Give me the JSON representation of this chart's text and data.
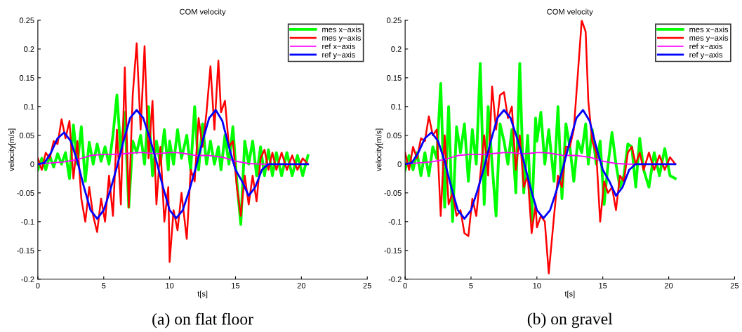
{
  "chart_data": [
    {
      "type": "line",
      "title": "COM velocity",
      "xlabel": "t[s]",
      "ylabel": "velocity[m/s]",
      "annotations": [
        "(a) on flat floor"
      ],
      "xlim": [
        0,
        25
      ],
      "xticks": [
        0,
        5,
        10,
        15,
        20,
        25
      ],
      "ylim": [
        -0.2,
        0.25
      ],
      "yticks": [
        -0.2,
        -0.15,
        -0.1,
        -0.05,
        0,
        0.05,
        0.1,
        0.15,
        0.2,
        0.25
      ],
      "grid": false,
      "legend": "top right",
      "x": [
        0,
        0.3,
        0.6,
        0.9,
        1.2,
        1.5,
        1.8,
        2.1,
        2.4,
        2.7,
        3.0,
        3.3,
        3.6,
        3.9,
        4.2,
        4.5,
        4.8,
        5.1,
        5.4,
        5.7,
        6.0,
        6.3,
        6.6,
        6.9,
        7.2,
        7.5,
        7.8,
        8.1,
        8.4,
        8.7,
        9.0,
        9.3,
        9.6,
        9.9,
        10.0,
        10.3,
        10.6,
        10.9,
        11.3,
        11.6,
        11.9,
        12.2,
        12.5,
        12.8,
        13.1,
        13.4,
        13.7,
        13.9,
        14.2,
        14.5,
        14.8,
        15.1,
        15.4,
        15.7,
        16.0,
        16.3,
        16.6,
        16.9,
        17.2,
        17.5,
        17.8,
        18.1,
        18.5,
        18.9,
        19.3,
        19.7,
        20.1,
        20.5
      ],
      "series": [
        {
          "name": "mes x−axis",
          "color": "#00ff00",
          "values": [
            -0.01,
            0.01,
            -0.01,
            0.015,
            -0.005,
            0.018,
            0.0,
            0.02,
            -0.025,
            0.068,
            0.0,
            0.065,
            -0.03,
            0.038,
            0.0,
            0.035,
            0.005,
            0.03,
            0.0,
            0.05,
            0.12,
            0.02,
            0.09,
            -0.075,
            0.04,
            0.02,
            0.05,
            0.0,
            0.1,
            -0.02,
            0.04,
            0.0,
            0.06,
            -0.01,
            0.04,
            0.0,
            0.06,
            0.01,
            0.05,
            -0.01,
            0.1,
            -0.01,
            0.07,
            0.0,
            0.04,
            0.0,
            0.03,
            -0.01,
            0.05,
            0.0,
            0.065,
            -0.03,
            -0.105,
            0.04,
            0.0,
            0.04,
            -0.02,
            0.03,
            -0.02,
            0.025,
            -0.02,
            0.02,
            -0.02,
            0.02,
            -0.02,
            0.015,
            -0.02,
            0.015
          ]
        },
        {
          "name": "mes y−axis",
          "color": "#ff0000",
          "values": [
            0.01,
            -0.01,
            0.02,
            0.01,
            0.04,
            0.035,
            0.078,
            0.045,
            0.075,
            -0.025,
            0.04,
            -0.06,
            -0.1,
            -0.04,
            -0.09,
            -0.118,
            -0.06,
            -0.1,
            -0.02,
            -0.09,
            0.06,
            -0.07,
            0.168,
            -0.075,
            0.12,
            0.21,
            0.06,
            0.205,
            0.01,
            0.11,
            -0.07,
            0.03,
            -0.1,
            -0.04,
            -0.17,
            -0.08,
            -0.115,
            -0.05,
            -0.13,
            -0.01,
            -0.03,
            0.08,
            0.03,
            0.09,
            0.17,
            0.06,
            0.18,
            0.09,
            0.11,
            0.03,
            0.04,
            -0.04,
            -0.09,
            -0.02,
            -0.07,
            -0.02,
            -0.065,
            0.01,
            0.025,
            -0.01,
            0.02,
            -0.01,
            0.02,
            -0.01,
            0.015,
            -0.01,
            0.01,
            0
          ]
        },
        {
          "name": "ref x−axis",
          "color": "#ff00ff",
          "x": [
            0,
            1,
            2,
            3,
            4,
            5,
            6,
            7,
            7.5,
            8,
            9,
            10,
            10.5,
            11,
            12,
            13,
            14,
            15,
            16,
            17,
            20.5
          ],
          "values": [
            0,
            0.002,
            0.004,
            0.008,
            0.015,
            0.017,
            0.017,
            0.019,
            0.02,
            0.02,
            0.018,
            0.02,
            0.02,
            0.019,
            0.015,
            0.015,
            0.012,
            0.005,
            0.001,
            0,
            0
          ]
        },
        {
          "name": "ref y−axis",
          "color": "#0000ff",
          "x": [
            0,
            0.5,
            1,
            1.5,
            2,
            2.5,
            3,
            3.5,
            4,
            4.5,
            5,
            5.5,
            6,
            6.5,
            7,
            7.5,
            8,
            8.5,
            9,
            9.5,
            10,
            10.5,
            11,
            11.5,
            12,
            12.5,
            13,
            13.5,
            14,
            14.5,
            15,
            15.5,
            16,
            16.5,
            17,
            17.5,
            18,
            20.5
          ],
          "values": [
            0,
            0.002,
            0.02,
            0.045,
            0.055,
            0.04,
            0.005,
            -0.04,
            -0.08,
            -0.095,
            -0.08,
            -0.045,
            -0.005,
            0.04,
            0.08,
            0.094,
            0.08,
            0.045,
            0.005,
            -0.04,
            -0.08,
            -0.094,
            -0.08,
            -0.045,
            -0.005,
            0.04,
            0.08,
            0.094,
            0.075,
            0.03,
            -0.01,
            -0.03,
            -0.055,
            -0.04,
            -0.01,
            0,
            0,
            0
          ]
        }
      ]
    },
    {
      "type": "line",
      "title": "COM velocity",
      "xlabel": "t[s]",
      "ylabel": "velocity[m/s]",
      "annotations": [
        "(b) on gravel"
      ],
      "xlim": [
        0,
        25
      ],
      "xticks": [
        0,
        5,
        10,
        15,
        20,
        25
      ],
      "ylim": [
        -0.2,
        0.25
      ],
      "yticks": [
        -0.2,
        -0.15,
        -0.1,
        -0.05,
        0,
        0.05,
        0.1,
        0.15,
        0.2,
        0.25
      ],
      "grid": false,
      "legend": "top right",
      "x": [
        0,
        0.3,
        0.6,
        0.9,
        1.2,
        1.5,
        1.8,
        2.1,
        2.4,
        2.7,
        3.0,
        3.3,
        3.6,
        3.9,
        4.2,
        4.5,
        4.8,
        5.1,
        5.4,
        5.7,
        6.0,
        6.3,
        6.6,
        6.9,
        7.2,
        7.5,
        7.8,
        8.1,
        8.4,
        8.7,
        9.0,
        9.3,
        9.6,
        9.9,
        10.0,
        10.3,
        10.6,
        10.9,
        11.3,
        11.6,
        11.9,
        12.2,
        12.5,
        12.8,
        13.1,
        13.4,
        13.7,
        13.9,
        14.2,
        14.5,
        14.8,
        15.1,
        15.4,
        15.7,
        16.0,
        16.3,
        16.6,
        16.9,
        17.2,
        17.5,
        17.8,
        18.1,
        18.5,
        18.9,
        19.3,
        19.7,
        20.1,
        20.5
      ],
      "series": [
        {
          "name": "mes x−axis",
          "color": "#00ff00",
          "values": [
            -0.01,
            0.015,
            -0.01,
            0.02,
            -0.02,
            0.02,
            -0.02,
            0.03,
            0.01,
            0.14,
            -0.075,
            0.1,
            -0.1,
            0.065,
            0.02,
            0.07,
            -0.03,
            0.06,
            0.0,
            0.175,
            -0.07,
            0.1,
            0.0,
            -0.09,
            0.07,
            0.04,
            0.0,
            0.06,
            -0.05,
            0.175,
            -0.05,
            0.05,
            -0.1,
            0.08,
            0.04,
            0.09,
            0.0,
            0.06,
            -0.03,
            0.1,
            -0.06,
            0.07,
            0.03,
            -0.03,
            0.04,
            0.02,
            0.07,
            0.0,
            0.06,
            0.0,
            0.04,
            -0.07,
            0.0,
            0.055,
            0.0,
            -0.04,
            -0.02,
            0.035,
            0.03,
            -0.04,
            0.045,
            -0.01,
            -0.04,
            0.02,
            -0.02,
            0.027,
            -0.02,
            -0.025
          ]
        },
        {
          "name": "mes y−axis",
          "color": "#ff0000",
          "values": [
            0.02,
            -0.01,
            0.03,
            0.01,
            0.045,
            0.04,
            0.083,
            0.05,
            0.06,
            -0.09,
            0.05,
            -0.07,
            -0.05,
            -0.09,
            -0.08,
            -0.12,
            -0.125,
            -0.06,
            -0.09,
            -0.02,
            0.05,
            -0.02,
            0.135,
            0.06,
            0.12,
            0.125,
            0.08,
            0.1,
            -0.01,
            0.05,
            -0.04,
            -0.02,
            -0.12,
            -0.07,
            -0.11,
            -0.09,
            -0.1,
            -0.19,
            -0.09,
            -0.02,
            -0.04,
            0.03,
            0.03,
            0.06,
            0.155,
            0.25,
            0.23,
            0.11,
            0.04,
            0.02,
            -0.1,
            -0.03,
            -0.05,
            -0.04,
            -0.08,
            -0.02,
            -0.03,
            0.02,
            0.03,
            0.0,
            0.02,
            -0.01,
            0.02,
            -0.01,
            0.015,
            -0.01,
            0.012,
            0.0
          ]
        },
        {
          "name": "ref x−axis",
          "color": "#ff00ff",
          "x": [
            0,
            1,
            2,
            3,
            4,
            5,
            6,
            7,
            7.5,
            8,
            9,
            10,
            10.5,
            11,
            12,
            13,
            14,
            15,
            16,
            17,
            20.5
          ],
          "values": [
            0,
            0.002,
            0.004,
            0.008,
            0.015,
            0.017,
            0.017,
            0.019,
            0.02,
            0.02,
            0.018,
            0.02,
            0.02,
            0.019,
            0.015,
            0.015,
            0.012,
            0.005,
            0.001,
            0,
            0
          ]
        },
        {
          "name": "ref y−axis",
          "color": "#0000ff",
          "x": [
            0,
            0.5,
            1,
            1.5,
            2,
            2.5,
            3,
            3.5,
            4,
            4.5,
            5,
            5.5,
            6,
            6.5,
            7,
            7.5,
            8,
            8.5,
            9,
            9.5,
            10,
            10.5,
            11,
            11.5,
            12,
            12.5,
            13,
            13.5,
            14,
            14.5,
            15,
            15.5,
            16,
            16.5,
            17,
            17.5,
            18,
            20.5
          ],
          "values": [
            0,
            0.002,
            0.02,
            0.045,
            0.055,
            0.04,
            0.005,
            -0.04,
            -0.08,
            -0.095,
            -0.08,
            -0.045,
            -0.005,
            0.04,
            0.08,
            0.094,
            0.08,
            0.045,
            0.005,
            -0.04,
            -0.08,
            -0.094,
            -0.08,
            -0.045,
            -0.005,
            0.04,
            0.08,
            0.094,
            0.075,
            0.03,
            -0.01,
            -0.03,
            -0.055,
            -0.04,
            -0.01,
            0,
            0,
            0
          ]
        }
      ]
    }
  ]
}
